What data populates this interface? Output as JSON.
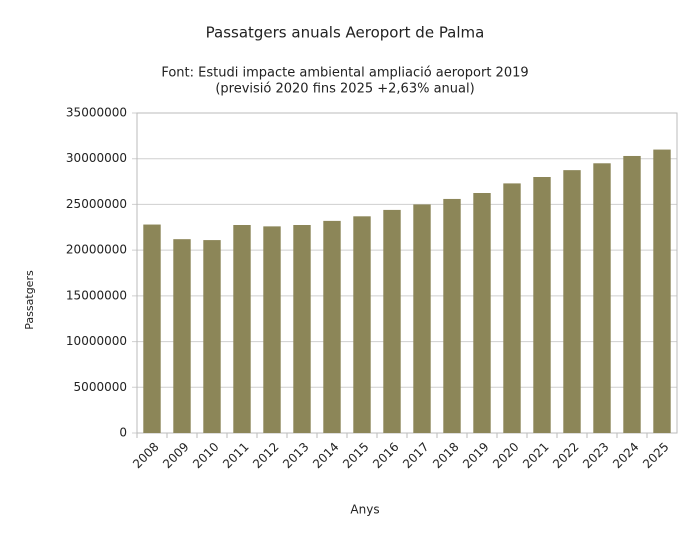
{
  "chart_data": {
    "type": "bar",
    "title": "Passatgers anuals Aeroport de Palma",
    "subtitle": [
      "Font: Estudi impacte ambiental ampliació aeroport 2019",
      "(previsió 2020 fins 2025 +2,63% anual)"
    ],
    "x_label": "Anys",
    "y_label": "Passatgers",
    "categories": [
      "2008",
      "2009",
      "2010",
      "2011",
      "2012",
      "2013",
      "2014",
      "2015",
      "2016",
      "2017",
      "2018",
      "2019",
      "2020",
      "2021",
      "2022",
      "2023",
      "2024",
      "2025"
    ],
    "values": [
      22800000,
      21200000,
      21100000,
      22750000,
      22600000,
      22750000,
      23200000,
      23700000,
      24400000,
      25000000,
      25600000,
      26250000,
      27300000,
      28000000,
      28750000,
      29500000,
      30300000,
      31000000
    ],
    "color": "#8c8658",
    "ylim": [
      0,
      35000000
    ],
    "yticks": [
      0,
      5000000,
      10000000,
      15000000,
      20000000,
      25000000,
      30000000,
      35000000
    ],
    "grid": true
  }
}
